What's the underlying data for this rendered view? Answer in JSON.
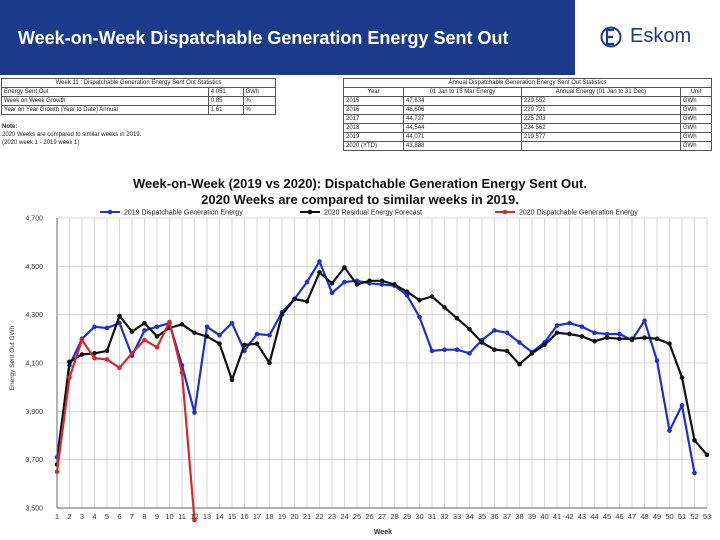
{
  "slide": {
    "title": "Week-on-Week Dispatchable Generation Energy Sent Out",
    "logo_text": "Eskom",
    "colors": {
      "header": "#1b3a8c",
      "brand": "#1b3a8c"
    }
  },
  "weekly_table": {
    "title": "Week 11 : Dispatchable Generation Energy Sent Out Statistics",
    "rows": [
      {
        "label": "Energy Sent Out",
        "value": "4 051",
        "unit": "GWh"
      },
      {
        "label": "Week on Week Growth",
        "value": "0.85",
        "unit": "%"
      },
      {
        "label": "Year on Year Growth (Year to Date) Annual",
        "value": "1.61",
        "unit": "%"
      }
    ],
    "note_label": "Note:",
    "note_lines": [
      "2020 Weeks are compared to similar weeks in 2019.",
      "(2020 week 1 - 2019 week 1)"
    ]
  },
  "annual_table": {
    "title": "Annual Dispatchable Generation Energy Sent Out Statistics",
    "headers": [
      "Year",
      "01 Jan to 15 Mar Energy",
      "Annual Energy (01 Jan to 31 Dec)",
      "Unit"
    ],
    "rows": [
      [
        "2015",
        "47,634",
        "229 552",
        "GWh"
      ],
      [
        "2016",
        "46,606",
        "229 721",
        "GWh"
      ],
      [
        "2017",
        "44,727",
        "225 203",
        "GWh"
      ],
      [
        "2018",
        "44,544",
        "224 562",
        "GWh"
      ],
      [
        "2019",
        "44,071",
        "219 577",
        "GWh"
      ],
      [
        "2020 (YTD)",
        "43,888",
        "",
        "GWh"
      ]
    ]
  },
  "chart_data": {
    "type": "line",
    "title": "Week-on-Week (2019 vs 2020): Dispatchable Generation Energy Sent Out.",
    "subtitle": "2020 Weeks are compared to similar weeks in 2019.",
    "xlabel": "Week",
    "ylabel": "Energy Sent Out GWh",
    "ylim": [
      3500,
      4700
    ],
    "yticks": [
      "3,500",
      "3,700",
      "3,900",
      "4,100",
      "4,300",
      "4,500",
      "4,700"
    ],
    "x": [
      "1",
      "2",
      "3",
      "4",
      "5",
      "6",
      "7",
      "8",
      "9",
      "10",
      "11",
      "12",
      "13",
      "14",
      "15",
      "16",
      "17",
      "18",
      "19",
      "20",
      "21",
      "22",
      "23",
      "24",
      "25",
      "26",
      "27",
      "28",
      "29",
      "30",
      "31",
      "32",
      "33",
      "34",
      "35",
      "36",
      "37",
      "38",
      "39",
      "40",
      "41",
      "42",
      "43",
      "44",
      "45",
      "46",
      "47",
      "48",
      "49",
      "50",
      "51",
      "52",
      "53"
    ],
    "series": [
      {
        "name": "2019 Dispatchable Generation Energy",
        "color": "#1f2fd0",
        "values": [
          3710,
          4090,
          4200,
          4250,
          4245,
          4265,
          4130,
          4235,
          4250,
          4265,
          4090,
          3895,
          4250,
          4215,
          4265,
          4150,
          4220,
          4215,
          4310,
          4365,
          4435,
          4520,
          4390,
          4435,
          4440,
          4430,
          4425,
          4420,
          4380,
          4290,
          4150,
          4155,
          4155,
          4140,
          4195,
          4235,
          4225,
          4185,
          4145,
          4185,
          4255,
          4265,
          4250,
          4225,
          4220,
          4220,
          4195,
          4275,
          4110,
          3820,
          3925,
          3645,
          null
        ]
      },
      {
        "name": "2020 Residual Energy Forecast",
        "color": "#111111",
        "values": [
          3680,
          4105,
          4135,
          4140,
          4150,
          4295,
          4230,
          4265,
          4210,
          4245,
          4260,
          4225,
          4210,
          4180,
          4030,
          4175,
          4180,
          4100,
          4300,
          4365,
          4355,
          4475,
          4430,
          4495,
          4425,
          4440,
          4440,
          4425,
          4395,
          4360,
          4375,
          4330,
          4285,
          4240,
          4185,
          4155,
          4150,
          4095,
          4140,
          4175,
          4225,
          4220,
          4210,
          4190,
          4205,
          4200,
          4200,
          4205,
          4200,
          4180,
          4040,
          3780,
          3720
        ]
      },
      {
        "name": "2020 Dispatchable Generation Energy",
        "color": "#d42a2a",
        "values": [
          3650,
          4040,
          4195,
          4120,
          4115,
          4080,
          4140,
          4195,
          4165,
          4270,
          4060,
          3450,
          null,
          null,
          null,
          null,
          null,
          null,
          null,
          null,
          null,
          null,
          null,
          null,
          null,
          null,
          null,
          null,
          null,
          null,
          null,
          null,
          null,
          null,
          null,
          null,
          null,
          null,
          null,
          null,
          null,
          null,
          null,
          null,
          null,
          null,
          null,
          null,
          null,
          null,
          null,
          null,
          null
        ]
      }
    ]
  }
}
